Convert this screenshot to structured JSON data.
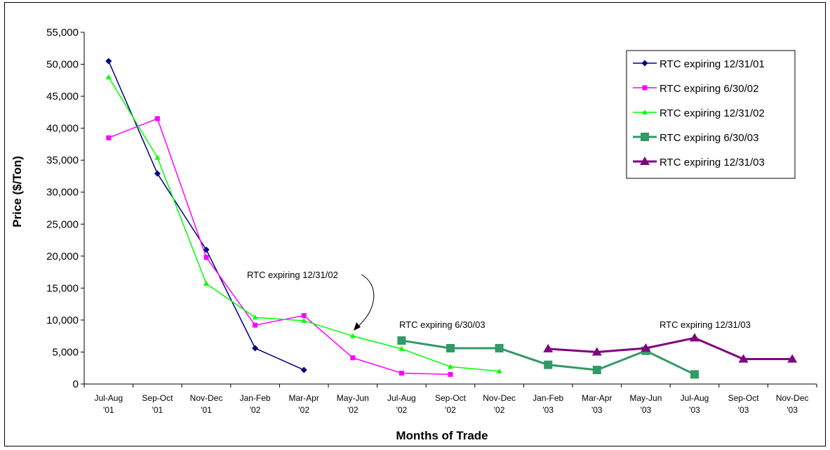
{
  "chart_data": {
    "type": "line",
    "title": "",
    "xlabel": "Months of Trade",
    "ylabel": "Price ($/Ton)",
    "ylim": [
      0,
      55000
    ],
    "y_ticks": [
      "0",
      "5,000",
      "10,000",
      "15,000",
      "20,000",
      "25,000",
      "30,000",
      "35,000",
      "40,000",
      "45,000",
      "50,000",
      "55,000"
    ],
    "categories": [
      [
        "Jul-Aug",
        "'01"
      ],
      [
        "Sep-Oct",
        "'01"
      ],
      [
        "Nov-Dec",
        "'01"
      ],
      [
        "Jan-Feb",
        "'02"
      ],
      [
        "Mar-Apr",
        "'02"
      ],
      [
        "May-Jun",
        "'02"
      ],
      [
        "Jul-Aug",
        "'02"
      ],
      [
        "Sep-Oct",
        "'02"
      ],
      [
        "Nov-Dec",
        "'02"
      ],
      [
        "Jan-Feb",
        "'03"
      ],
      [
        "Mar-Apr",
        "'03"
      ],
      [
        "May-Jun",
        "'03"
      ],
      [
        "Jul-Aug",
        "'03"
      ],
      [
        "Sep-Oct",
        "'03"
      ],
      [
        "Nov-Dec",
        "'03"
      ]
    ],
    "grid": false,
    "legend_position": "top-right",
    "series": [
      {
        "name": "RTC expiring 12/31/01",
        "color": "#000080",
        "marker": "diamond",
        "values": [
          50500,
          32900,
          21000,
          5600,
          2200,
          null,
          null,
          null,
          null,
          null,
          null,
          null,
          null,
          null,
          null
        ]
      },
      {
        "name": "RTC expiring 6/30/02",
        "color": "#FF00FF",
        "marker": "square",
        "values": [
          38500,
          41500,
          19800,
          9200,
          10700,
          4100,
          1700,
          1500,
          null,
          null,
          null,
          null,
          null,
          null,
          null
        ]
      },
      {
        "name": "RTC expiring 12/31/02",
        "color": "#00FF00",
        "marker": "triangle",
        "values": [
          48000,
          35400,
          15700,
          10400,
          9900,
          7500,
          5500,
          2700,
          2000,
          null,
          null,
          null,
          null,
          null,
          null
        ]
      },
      {
        "name": "RTC expiring 6/30/03",
        "color": "#339966",
        "marker": "square-large",
        "values": [
          null,
          null,
          null,
          null,
          null,
          null,
          6800,
          5600,
          5600,
          3000,
          2200,
          5200,
          1500,
          null,
          null
        ]
      },
      {
        "name": "RTC expiring 12/31/03",
        "color": "#800080",
        "marker": "triangle-large",
        "values": [
          null,
          null,
          null,
          null,
          null,
          null,
          null,
          null,
          null,
          5500,
          5000,
          5600,
          7200,
          3900,
          3900
        ]
      }
    ],
    "annotations": [
      {
        "text": "RTC expiring 12/31/02",
        "category_index": 5.3,
        "value": 7500
      },
      {
        "text": "RTC expiring 6/30/03",
        "category_index": 6.5,
        "value": 9500
      },
      {
        "text": "RTC expiring 12/31/03",
        "category_index": 12.5,
        "value": 9500
      }
    ]
  }
}
